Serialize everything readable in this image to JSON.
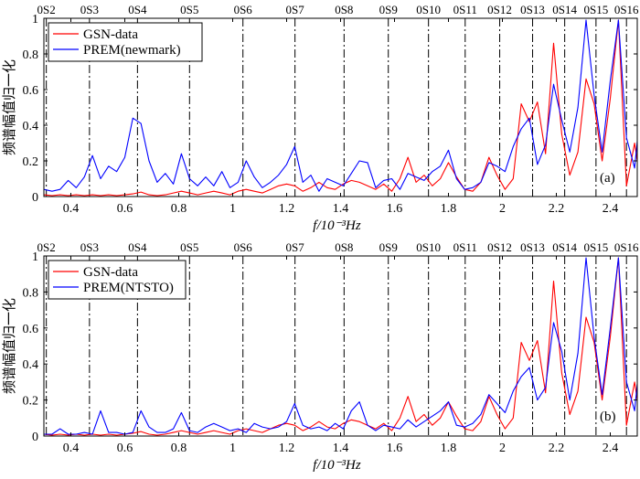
{
  "colors": {
    "gsn": "#ff0000",
    "prem": "#0000ff",
    "axis": "#000000",
    "vline": "#000000"
  },
  "chart_data": [
    {
      "type": "line",
      "panel_label": "(a)",
      "xlabel": "f/10⁻³Hz",
      "ylabel": "频谱幅值归一化",
      "xlim": [
        0.3,
        2.5
      ],
      "ylim": [
        0,
        1
      ],
      "xticks": [
        "0.4",
        "0.6",
        "0.8",
        "1",
        "1.2",
        "1.4",
        "1.6",
        "1.8",
        "2",
        "2.2",
        "2.4"
      ],
      "yticks": [
        "0",
        "0.2",
        "0.4",
        "0.6",
        "0.8",
        "1"
      ],
      "modes": [
        {
          "label": "0S2",
          "f": 0.309
        },
        {
          "label": "0S3",
          "f": 0.469
        },
        {
          "label": "0S4",
          "f": 0.647
        },
        {
          "label": "0S5",
          "f": 0.84
        },
        {
          "label": "0S6",
          "f": 1.038
        },
        {
          "label": "0S7",
          "f": 1.231
        },
        {
          "label": "0S8",
          "f": 1.413
        },
        {
          "label": "0S9",
          "f": 1.577
        },
        {
          "label": "0S10",
          "f": 1.726
        },
        {
          "label": "0S11",
          "f": 1.862
        },
        {
          "label": "0S12",
          "f": 1.99
        },
        {
          "label": "0S13",
          "f": 2.112
        },
        {
          "label": "0S14",
          "f": 2.231
        },
        {
          "label": "0S15",
          "f": 2.347
        },
        {
          "label": "0S16",
          "f": 2.46
        }
      ],
      "legend": [
        "GSN-data",
        "PREM(newmark)"
      ],
      "series": [
        {
          "name": "GSN-data",
          "color": "#ff0000",
          "x": [
            0.3,
            0.33,
            0.36,
            0.39,
            0.42,
            0.45,
            0.48,
            0.51,
            0.54,
            0.57,
            0.6,
            0.63,
            0.66,
            0.69,
            0.72,
            0.75,
            0.78,
            0.81,
            0.84,
            0.87,
            0.9,
            0.93,
            0.96,
            0.99,
            1.02,
            1.05,
            1.08,
            1.11,
            1.14,
            1.17,
            1.2,
            1.23,
            1.26,
            1.29,
            1.32,
            1.35,
            1.38,
            1.41,
            1.44,
            1.47,
            1.5,
            1.53,
            1.56,
            1.59,
            1.62,
            1.65,
            1.68,
            1.71,
            1.74,
            1.77,
            1.8,
            1.83,
            1.86,
            1.89,
            1.92,
            1.95,
            1.98,
            2.01,
            2.04,
            2.07,
            2.1,
            2.13,
            2.16,
            2.19,
            2.22,
            2.25,
            2.28,
            2.31,
            2.34,
            2.37,
            2.4,
            2.43,
            2.46,
            2.49,
            2.5
          ],
          "values": [
            0.01,
            0.005,
            0.01,
            0.005,
            0.01,
            0.005,
            0.01,
            0.005,
            0.01,
            0.005,
            0.01,
            0.015,
            0.025,
            0.01,
            0.005,
            0.01,
            0.02,
            0.03,
            0.02,
            0.01,
            0.02,
            0.03,
            0.02,
            0.01,
            0.03,
            0.04,
            0.03,
            0.02,
            0.04,
            0.06,
            0.07,
            0.06,
            0.03,
            0.05,
            0.08,
            0.05,
            0.04,
            0.07,
            0.09,
            0.08,
            0.06,
            0.04,
            0.07,
            0.03,
            0.1,
            0.22,
            0.08,
            0.12,
            0.06,
            0.1,
            0.19,
            0.11,
            0.04,
            0.03,
            0.08,
            0.22,
            0.12,
            0.04,
            0.1,
            0.52,
            0.42,
            0.53,
            0.24,
            0.86,
            0.35,
            0.12,
            0.25,
            0.66,
            0.52,
            0.2,
            0.55,
            0.99,
            0.06,
            0.3,
            0.2
          ]
        },
        {
          "name": "PREM(newmark)",
          "color": "#0000ff",
          "x": [
            0.3,
            0.33,
            0.36,
            0.39,
            0.42,
            0.45,
            0.48,
            0.51,
            0.54,
            0.57,
            0.6,
            0.63,
            0.66,
            0.69,
            0.72,
            0.75,
            0.78,
            0.81,
            0.84,
            0.87,
            0.9,
            0.93,
            0.96,
            0.99,
            1.02,
            1.05,
            1.08,
            1.11,
            1.14,
            1.17,
            1.2,
            1.23,
            1.26,
            1.29,
            1.32,
            1.35,
            1.38,
            1.41,
            1.44,
            1.47,
            1.5,
            1.53,
            1.56,
            1.59,
            1.62,
            1.65,
            1.68,
            1.71,
            1.74,
            1.77,
            1.8,
            1.83,
            1.86,
            1.89,
            1.92,
            1.95,
            1.98,
            2.01,
            2.04,
            2.07,
            2.1,
            2.13,
            2.16,
            2.19,
            2.22,
            2.25,
            2.28,
            2.31,
            2.34,
            2.37,
            2.4,
            2.43,
            2.46,
            2.49,
            2.5
          ],
          "values": [
            0.04,
            0.03,
            0.04,
            0.09,
            0.05,
            0.11,
            0.23,
            0.1,
            0.17,
            0.14,
            0.22,
            0.44,
            0.41,
            0.2,
            0.08,
            0.13,
            0.07,
            0.24,
            0.1,
            0.06,
            0.11,
            0.06,
            0.14,
            0.05,
            0.08,
            0.2,
            0.11,
            0.05,
            0.08,
            0.12,
            0.18,
            0.28,
            0.08,
            0.12,
            0.03,
            0.1,
            0.08,
            0.06,
            0.13,
            0.2,
            0.19,
            0.05,
            0.09,
            0.1,
            0.04,
            0.13,
            0.11,
            0.09,
            0.14,
            0.17,
            0.26,
            0.1,
            0.04,
            0.05,
            0.08,
            0.19,
            0.17,
            0.14,
            0.28,
            0.38,
            0.44,
            0.18,
            0.29,
            0.63,
            0.43,
            0.25,
            0.5,
            0.99,
            0.57,
            0.25,
            0.65,
            0.99,
            0.33,
            0.16,
            0.31
          ]
        }
      ]
    },
    {
      "type": "line",
      "panel_label": "(b)",
      "xlabel": "f/10⁻³Hz",
      "ylabel": "频谱幅值归一化",
      "xlim": [
        0.3,
        2.5
      ],
      "ylim": [
        0,
        1
      ],
      "xticks": [
        "0.4",
        "0.6",
        "0.8",
        "1",
        "1.2",
        "1.4",
        "1.6",
        "1.8",
        "2",
        "2.2",
        "2.4"
      ],
      "yticks": [
        "0",
        "0.2",
        "0.4",
        "0.6",
        "0.8",
        "1"
      ],
      "modes": [
        {
          "label": "0S2",
          "f": 0.309
        },
        {
          "label": "0S3",
          "f": 0.469
        },
        {
          "label": "0S4",
          "f": 0.647
        },
        {
          "label": "0S5",
          "f": 0.84
        },
        {
          "label": "0S6",
          "f": 1.038
        },
        {
          "label": "0S7",
          "f": 1.231
        },
        {
          "label": "0S8",
          "f": 1.413
        },
        {
          "label": "0S9",
          "f": 1.577
        },
        {
          "label": "0S10",
          "f": 1.726
        },
        {
          "label": "0S11",
          "f": 1.862
        },
        {
          "label": "0S12",
          "f": 1.99
        },
        {
          "label": "0S13",
          "f": 2.112
        },
        {
          "label": "0S14",
          "f": 2.231
        },
        {
          "label": "0S15",
          "f": 2.347
        },
        {
          "label": "0S16",
          "f": 2.46
        }
      ],
      "legend": [
        "GSN-data",
        "PREM(NTSTO)"
      ],
      "series": [
        {
          "name": "GSN-data",
          "color": "#ff0000",
          "x": [
            0.3,
            0.33,
            0.36,
            0.39,
            0.42,
            0.45,
            0.48,
            0.51,
            0.54,
            0.57,
            0.6,
            0.63,
            0.66,
            0.69,
            0.72,
            0.75,
            0.78,
            0.81,
            0.84,
            0.87,
            0.9,
            0.93,
            0.96,
            0.99,
            1.02,
            1.05,
            1.08,
            1.11,
            1.14,
            1.17,
            1.2,
            1.23,
            1.26,
            1.29,
            1.32,
            1.35,
            1.38,
            1.41,
            1.44,
            1.47,
            1.5,
            1.53,
            1.56,
            1.59,
            1.62,
            1.65,
            1.68,
            1.71,
            1.74,
            1.77,
            1.8,
            1.83,
            1.86,
            1.89,
            1.92,
            1.95,
            1.98,
            2.01,
            2.04,
            2.07,
            2.1,
            2.13,
            2.16,
            2.19,
            2.22,
            2.25,
            2.28,
            2.31,
            2.34,
            2.37,
            2.4,
            2.43,
            2.46,
            2.49,
            2.5
          ],
          "values": [
            0.01,
            0.005,
            0.01,
            0.005,
            0.01,
            0.005,
            0.01,
            0.005,
            0.01,
            0.005,
            0.01,
            0.015,
            0.025,
            0.01,
            0.005,
            0.01,
            0.02,
            0.03,
            0.02,
            0.01,
            0.02,
            0.03,
            0.02,
            0.01,
            0.03,
            0.04,
            0.03,
            0.02,
            0.04,
            0.06,
            0.07,
            0.06,
            0.03,
            0.05,
            0.08,
            0.05,
            0.04,
            0.07,
            0.09,
            0.08,
            0.06,
            0.04,
            0.07,
            0.03,
            0.1,
            0.22,
            0.08,
            0.12,
            0.06,
            0.1,
            0.19,
            0.11,
            0.04,
            0.03,
            0.08,
            0.22,
            0.12,
            0.04,
            0.1,
            0.52,
            0.42,
            0.53,
            0.24,
            0.86,
            0.35,
            0.12,
            0.25,
            0.66,
            0.52,
            0.2,
            0.55,
            0.99,
            0.06,
            0.3,
            0.2
          ]
        },
        {
          "name": "PREM(NTSTO)",
          "color": "#0000ff",
          "x": [
            0.3,
            0.33,
            0.36,
            0.39,
            0.42,
            0.45,
            0.48,
            0.51,
            0.54,
            0.57,
            0.6,
            0.63,
            0.66,
            0.69,
            0.72,
            0.75,
            0.78,
            0.81,
            0.84,
            0.87,
            0.9,
            0.93,
            0.96,
            0.99,
            1.02,
            1.05,
            1.08,
            1.11,
            1.14,
            1.17,
            1.2,
            1.23,
            1.26,
            1.29,
            1.32,
            1.35,
            1.38,
            1.41,
            1.44,
            1.47,
            1.5,
            1.53,
            1.56,
            1.59,
            1.62,
            1.65,
            1.68,
            1.71,
            1.74,
            1.77,
            1.8,
            1.83,
            1.86,
            1.89,
            1.92,
            1.95,
            1.98,
            2.01,
            2.04,
            2.07,
            2.1,
            2.13,
            2.16,
            2.19,
            2.22,
            2.25,
            2.28,
            2.31,
            2.34,
            2.37,
            2.4,
            2.43,
            2.46,
            2.49,
            2.5
          ],
          "values": [
            0.01,
            0.01,
            0.04,
            0.01,
            0.01,
            0.02,
            0.01,
            0.14,
            0.02,
            0.02,
            0.01,
            0.02,
            0.14,
            0.05,
            0.02,
            0.02,
            0.04,
            0.13,
            0.03,
            0.02,
            0.05,
            0.07,
            0.05,
            0.03,
            0.04,
            0.02,
            0.07,
            0.05,
            0.04,
            0.05,
            0.08,
            0.18,
            0.06,
            0.04,
            0.05,
            0.03,
            0.07,
            0.04,
            0.14,
            0.19,
            0.06,
            0.03,
            0.06,
            0.05,
            0.04,
            0.09,
            0.05,
            0.08,
            0.11,
            0.14,
            0.19,
            0.06,
            0.05,
            0.07,
            0.12,
            0.23,
            0.18,
            0.13,
            0.25,
            0.33,
            0.38,
            0.2,
            0.27,
            0.63,
            0.47,
            0.2,
            0.46,
            0.99,
            0.55,
            0.23,
            0.6,
            0.99,
            0.3,
            0.14,
            0.29
          ]
        }
      ]
    }
  ]
}
